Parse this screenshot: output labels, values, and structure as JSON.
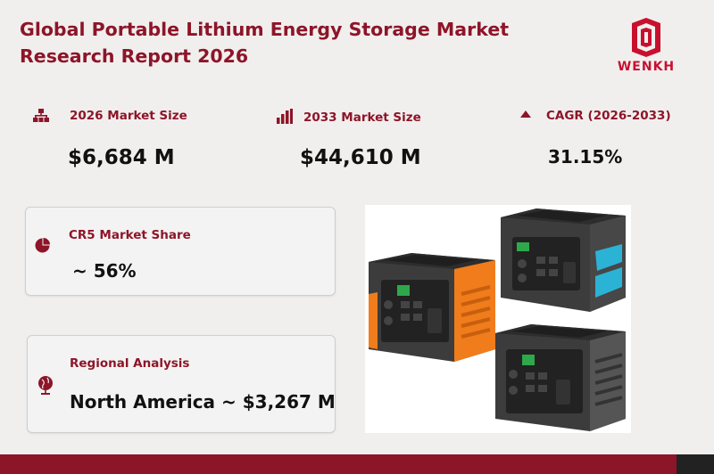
{
  "title_line1": "Global Portable Lithium Energy Storage Market",
  "title_line2": "Research Report 2026",
  "logo": {
    "text": "WENKH",
    "icon": "wenkh-logo-icon"
  },
  "stats": [
    {
      "label": "2026 Market Size",
      "value": "$6,684  M",
      "icon": "org-chart-icon"
    },
    {
      "label": "2033 Market Size",
      "value": "$44,610  M",
      "icon": "bar-chart-icon"
    },
    {
      "label": "CAGR (2026-2033)",
      "value": "31.15%",
      "icon": "triangle-up-icon"
    }
  ],
  "cards": {
    "cr5": {
      "label": "CR5 Market Share",
      "value": "~ 56%",
      "icon": "pie-chart-icon"
    },
    "regional": {
      "label": "Regional Analysis",
      "value": "North America ~ $3,267 M",
      "icon": "globe-icon"
    }
  },
  "colors": {
    "brand": "#8d1528",
    "logo_red": "#c8102e",
    "orange_unit": "#f07c1c",
    "cyan_unit": "#2bb3d6",
    "unit_body": "#3c3c3c"
  }
}
